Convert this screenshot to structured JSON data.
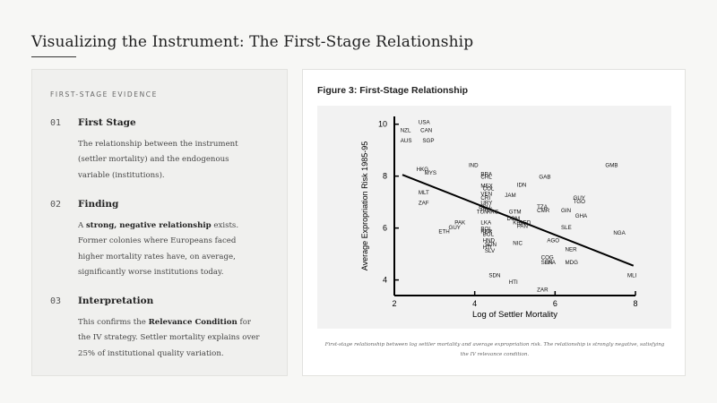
{
  "page": {
    "title": "Visualizing the Instrument: The First-Stage Relationship"
  },
  "evidence": {
    "label": "FIRST-STAGE EVIDENCE",
    "items": [
      {
        "num": "01",
        "title": "First Stage",
        "body": "The relationship between the instrument (settler mortality) and the endogenous variable (institutions)."
      },
      {
        "num": "02",
        "title": "Finding",
        "body_pre": "A ",
        "body_strong": "strong, negative relationship",
        "body_post": " exists. Former colonies where Europeans faced higher mortality rates have, on average, significantly worse institutions today."
      },
      {
        "num": "03",
        "title": "Interpretation",
        "body_pre": "This confirms the ",
        "body_strong": "Relevance Condition",
        "body_post": " for the IV strategy. Settler mortality explains over 25% of institutional quality variation."
      }
    ]
  },
  "figure": {
    "title": "Figure 3: First-Stage Relationship",
    "caption": "First-stage relationship between log settler mortality and average expropriation risk. The relationship is strongly negative, satisfying the IV relevance condition."
  },
  "chart_data": {
    "type": "scatter",
    "xlabel": "Log of Settler Mortality",
    "ylabel": "Average Expropriation Risk 1985-95",
    "xlim": [
      2,
      8
    ],
    "ylim": [
      3.4,
      10.3
    ],
    "xticks": [
      2,
      4,
      6,
      8
    ],
    "yticks": [
      4,
      6,
      8,
      10
    ],
    "grid": false,
    "fit_line": {
      "x": [
        2.2,
        7.95
      ],
      "y": [
        8.05,
        4.55
      ]
    },
    "points": [
      {
        "label": "NZL",
        "x": 2.15,
        "y": 9.7
      },
      {
        "label": "USA",
        "x": 2.6,
        "y": 10.0
      },
      {
        "label": "CAN",
        "x": 2.65,
        "y": 9.7
      },
      {
        "label": "AUS",
        "x": 2.15,
        "y": 9.3
      },
      {
        "label": "SGP",
        "x": 2.7,
        "y": 9.3
      },
      {
        "label": "IND",
        "x": 3.85,
        "y": 8.35
      },
      {
        "label": "GMB",
        "x": 7.25,
        "y": 8.35
      },
      {
        "label": "HKG",
        "x": 2.55,
        "y": 8.2
      },
      {
        "label": "MYS",
        "x": 2.75,
        "y": 8.05
      },
      {
        "label": "BRA",
        "x": 4.15,
        "y": 8.0
      },
      {
        "label": "CHL",
        "x": 4.15,
        "y": 7.9
      },
      {
        "label": "GAB",
        "x": 5.6,
        "y": 7.9
      },
      {
        "label": "IDN",
        "x": 5.05,
        "y": 7.6
      },
      {
        "label": "MEX",
        "x": 4.15,
        "y": 7.55
      },
      {
        "label": "COL",
        "x": 4.2,
        "y": 7.45
      },
      {
        "label": "MLT",
        "x": 2.6,
        "y": 7.3
      },
      {
        "label": "VEN",
        "x": 4.15,
        "y": 7.25
      },
      {
        "label": "JAM",
        "x": 4.75,
        "y": 7.2
      },
      {
        "label": "ZAF",
        "x": 2.6,
        "y": 6.9
      },
      {
        "label": "CRI",
        "x": 4.15,
        "y": 7.1
      },
      {
        "label": "GUY",
        "x": 6.45,
        "y": 7.1
      },
      {
        "label": "TGO",
        "x": 6.45,
        "y": 6.95
      },
      {
        "label": "TZA",
        "x": 5.55,
        "y": 6.75
      },
      {
        "label": "CMR",
        "x": 5.55,
        "y": 6.6
      },
      {
        "label": "GIN",
        "x": 6.15,
        "y": 6.6
      },
      {
        "label": "ECU",
        "x": 4.1,
        "y": 6.75
      },
      {
        "label": "TUN",
        "x": 4.05,
        "y": 6.55
      },
      {
        "label": "ARG",
        "x": 4.3,
        "y": 6.55
      },
      {
        "label": "PRY",
        "x": 4.15,
        "y": 6.65
      },
      {
        "label": "URY",
        "x": 4.15,
        "y": 6.9
      },
      {
        "label": "GTM",
        "x": 4.85,
        "y": 6.55
      },
      {
        "label": "GHA",
        "x": 6.5,
        "y": 6.4
      },
      {
        "label": "DOM",
        "x": 4.8,
        "y": 6.3
      },
      {
        "label": "KEN",
        "x": 4.95,
        "y": 6.15
      },
      {
        "label": "BGD",
        "x": 5.1,
        "y": 6.15
      },
      {
        "label": "PAK",
        "x": 3.5,
        "y": 6.15
      },
      {
        "label": "GUY",
        "x": 3.35,
        "y": 5.95
      },
      {
        "label": "ETH",
        "x": 3.1,
        "y": 5.8
      },
      {
        "label": "LKA",
        "x": 4.15,
        "y": 6.15
      },
      {
        "label": "BOL",
        "x": 4.15,
        "y": 5.9
      },
      {
        "label": "PER",
        "x": 4.15,
        "y": 5.8
      },
      {
        "label": "PAN",
        "x": 5.05,
        "y": 6.0
      },
      {
        "label": "SLE",
        "x": 6.15,
        "y": 5.95
      },
      {
        "label": "NGA",
        "x": 7.45,
        "y": 5.75
      },
      {
        "label": "BOL",
        "x": 4.2,
        "y": 5.7
      },
      {
        "label": "HND",
        "x": 4.2,
        "y": 5.45
      },
      {
        "label": "AGO",
        "x": 5.8,
        "y": 5.45
      },
      {
        "label": "SDN",
        "x": 4.25,
        "y": 5.3
      },
      {
        "label": "NIC",
        "x": 4.95,
        "y": 5.35
      },
      {
        "label": "HTI",
        "x": 4.2,
        "y": 5.2
      },
      {
        "label": "SLV",
        "x": 4.25,
        "y": 5.05
      },
      {
        "label": "NER",
        "x": 6.25,
        "y": 5.1
      },
      {
        "label": "COG",
        "x": 5.65,
        "y": 4.8
      },
      {
        "label": "BFA",
        "x": 5.75,
        "y": 4.6
      },
      {
        "label": "SEN",
        "x": 5.65,
        "y": 4.6
      },
      {
        "label": "MDG",
        "x": 6.25,
        "y": 4.6
      },
      {
        "label": "SDN",
        "x": 4.35,
        "y": 4.1
      },
      {
        "label": "MLI",
        "x": 7.8,
        "y": 4.1
      },
      {
        "label": "HTI",
        "x": 4.85,
        "y": 3.85
      },
      {
        "label": "ZAR",
        "x": 5.55,
        "y": 3.55
      }
    ]
  }
}
